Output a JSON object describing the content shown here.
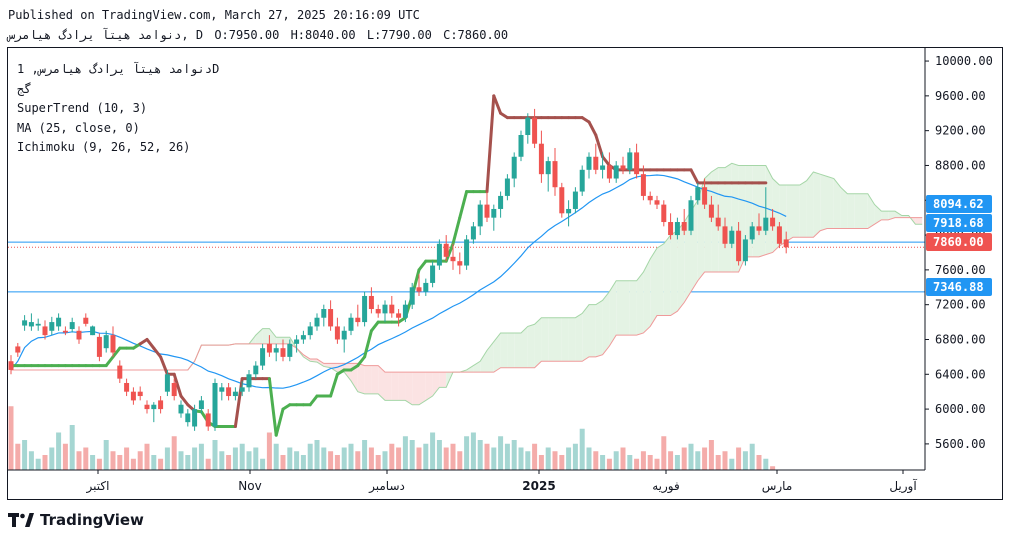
{
  "header": {
    "published": "Published on TradingView.com, March 27, 2025 20:16:09 UTC",
    "symbol": "دنوامد هیتآ یرادگ هیامرس, D",
    "ohlc": {
      "o": "O:7950.00",
      "h": "H:8040.00",
      "l": "L:7790.00",
      "c": "C:7860.00"
    }
  },
  "legend": {
    "symbol": "دنوامد هیتآ یرادگ هیامرس, 1D",
    "sub": "گج",
    "indicators": [
      "SuperTrend (10, 3)",
      "MA (25, close, 0)",
      "Ichimoku (9, 26, 52, 26)"
    ]
  },
  "brand": {
    "name": "TradingView"
  },
  "colors": {
    "up": "#26a69a",
    "down": "#ef5350",
    "upVol": "#a5d6d2",
    "downVol": "#f4acaa",
    "supertrendUp": "#4caf50",
    "supertrendDown": "#a5514d",
    "ma": "#2196f3",
    "cloudUp": "#e4f3e4",
    "cloudDown": "#fbe3e3",
    "hline": "#2196f3"
  },
  "chart_data": {
    "type": "candlestick",
    "y_axis": {
      "min": 5300,
      "max": 10150,
      "ticks": [
        "10000.00",
        "9600.00",
        "9200.00",
        "8800.00",
        "8400.00",
        "8000.00",
        "7600.00",
        "7200.00",
        "6800.00",
        "6400.00",
        "6000.00",
        "5600.00"
      ]
    },
    "x_axis": {
      "labels": [
        "اکتبر",
        "Nov",
        "دسامبر",
        "2025",
        "فوریه",
        "مارس",
        "آوریل"
      ]
    },
    "price_labels": [
      {
        "text": "8094.62",
        "color": "#2196f3"
      },
      {
        "text": "7918.68",
        "color": "#2196f3"
      },
      {
        "text": "7860.00",
        "color": "#ef5350"
      },
      {
        "text": "7346.88",
        "color": "#2196f3"
      }
    ],
    "horizontal_lines": [
      7918.68,
      7346.88
    ],
    "last_price": 7860.0,
    "candles": [
      [
        6550,
        6620,
        6400,
        6450
      ],
      [
        6720,
        6760,
        6600,
        6650
      ],
      [
        6960,
        7080,
        6900,
        7020
      ],
      [
        6950,
        7100,
        6900,
        7000
      ],
      [
        6960,
        7040,
        6900,
        6980
      ],
      [
        6950,
        7020,
        6800,
        6850
      ],
      [
        6900,
        7060,
        6850,
        7000
      ],
      [
        6950,
        7100,
        6900,
        7050
      ],
      [
        6900,
        6950,
        6850,
        6880
      ],
      [
        6920,
        7050,
        6880,
        7000
      ],
      [
        6900,
        6950,
        6750,
        6800
      ],
      [
        7050,
        7100,
        6950,
        6980
      ],
      [
        6850,
        6960,
        6850,
        6950
      ],
      [
        6830,
        6870,
        6550,
        6600
      ],
      [
        6700,
        6900,
        6650,
        6850
      ],
      [
        6850,
        6950,
        6600,
        6650
      ],
      [
        6500,
        6560,
        6300,
        6350
      ],
      [
        6300,
        6350,
        6150,
        6200
      ],
      [
        6200,
        6250,
        6050,
        6100
      ],
      [
        6200,
        6260,
        6100,
        6150
      ],
      [
        6050,
        6100,
        5950,
        6000
      ],
      [
        6000,
        6080,
        5850,
        6050
      ],
      [
        6100,
        6150,
        5950,
        6000
      ],
      [
        6200,
        6450,
        6150,
        6400
      ],
      [
        6300,
        6350,
        6100,
        6150
      ],
      [
        5950,
        6100,
        5900,
        6050
      ],
      [
        5850,
        6000,
        5800,
        5950
      ],
      [
        5800,
        6050,
        5750,
        6000
      ],
      [
        6000,
        6150,
        5950,
        6100
      ],
      [
        5950,
        6000,
        5750,
        5800
      ],
      [
        5800,
        6350,
        5750,
        6300
      ],
      [
        6200,
        6300,
        6100,
        6250
      ],
      [
        6250,
        6300,
        6100,
        6150
      ],
      [
        6150,
        6250,
        6100,
        6200
      ],
      [
        6200,
        6320,
        6150,
        6250
      ],
      [
        6250,
        6450,
        6200,
        6400
      ],
      [
        6400,
        6550,
        6350,
        6500
      ],
      [
        6500,
        6750,
        6450,
        6700
      ],
      [
        6750,
        6850,
        6600,
        6650
      ],
      [
        6650,
        6750,
        6550,
        6700
      ],
      [
        6700,
        6800,
        6550,
        6600
      ],
      [
        6600,
        6800,
        6550,
        6750
      ],
      [
        6750,
        6850,
        6650,
        6800
      ],
      [
        6800,
        6900,
        6750,
        6850
      ],
      [
        6850,
        7000,
        6800,
        6950
      ],
      [
        6950,
        7100,
        6900,
        7050
      ],
      [
        7050,
        7200,
        6950,
        7150
      ],
      [
        7150,
        7250,
        6900,
        6950
      ],
      [
        6950,
        7050,
        6750,
        6800
      ],
      [
        6800,
        6950,
        6650,
        6900
      ],
      [
        6900,
        7100,
        6850,
        7050
      ],
      [
        7050,
        7200,
        6950,
        7000
      ],
      [
        7000,
        7350,
        6950,
        7300
      ],
      [
        7300,
        7400,
        7100,
        7150
      ],
      [
        7150,
        7200,
        7050,
        7100
      ],
      [
        7100,
        7250,
        7000,
        7200
      ],
      [
        7200,
        7300,
        7050,
        7100
      ],
      [
        7100,
        7150,
        6950,
        7050
      ],
      [
        7050,
        7250,
        7000,
        7200
      ],
      [
        7200,
        7450,
        7150,
        7400
      ],
      [
        7400,
        7550,
        7300,
        7350
      ],
      [
        7350,
        7500,
        7300,
        7450
      ],
      [
        7450,
        7700,
        7400,
        7650
      ],
      [
        7650,
        7950,
        7600,
        7900
      ],
      [
        7900,
        8000,
        7700,
        7750
      ],
      [
        7750,
        7900,
        7600,
        7700
      ],
      [
        7700,
        7800,
        7550,
        7650
      ],
      [
        7650,
        8000,
        7600,
        7950
      ],
      [
        7950,
        8150,
        7900,
        8100
      ],
      [
        8100,
        8400,
        8000,
        8350
      ],
      [
        8350,
        8500,
        8150,
        8200
      ],
      [
        8200,
        8350,
        8050,
        8300
      ],
      [
        8300,
        8500,
        8200,
        8450
      ],
      [
        8450,
        8700,
        8400,
        8650
      ],
      [
        8650,
        8950,
        8550,
        8900
      ],
      [
        8900,
        9200,
        8850,
        9150
      ],
      [
        9150,
        9400,
        9050,
        9350
      ],
      [
        9350,
        9450,
        9000,
        9050
      ],
      [
        9050,
        9200,
        8600,
        8700
      ],
      [
        8700,
        8900,
        8500,
        8850
      ],
      [
        8850,
        9000,
        8450,
        8550
      ],
      [
        8550,
        8600,
        8200,
        8250
      ],
      [
        8250,
        8400,
        8100,
        8300
      ],
      [
        8300,
        8550,
        8250,
        8500
      ],
      [
        8500,
        8800,
        8450,
        8750
      ],
      [
        8750,
        8950,
        8650,
        8900
      ],
      [
        8900,
        9050,
        8700,
        8750
      ],
      [
        8750,
        8950,
        8650,
        8800
      ],
      [
        8800,
        8950,
        8600,
        8650
      ],
      [
        8650,
        8850,
        8600,
        8800
      ],
      [
        8800,
        8900,
        8700,
        8750
      ],
      [
        8750,
        9000,
        8700,
        8950
      ],
      [
        8950,
        9050,
        8650,
        8700
      ],
      [
        8700,
        8800,
        8400,
        8450
      ],
      [
        8450,
        8500,
        8350,
        8400
      ],
      [
        8400,
        8450,
        8300,
        8350
      ],
      [
        8350,
        8400,
        8100,
        8150
      ],
      [
        8150,
        8250,
        7950,
        8000
      ],
      [
        8000,
        8200,
        7950,
        8150
      ],
      [
        8150,
        8300,
        8000,
        8050
      ],
      [
        8050,
        8450,
        8000,
        8400
      ],
      [
        8400,
        8600,
        8350,
        8550
      ],
      [
        8550,
        8650,
        8300,
        8350
      ],
      [
        8350,
        8450,
        8150,
        8200
      ],
      [
        8200,
        8350,
        8050,
        8100
      ],
      [
        8100,
        8200,
        7850,
        7900
      ],
      [
        7900,
        8100,
        7850,
        8050
      ],
      [
        8050,
        8150,
        7650,
        7700
      ],
      [
        7700,
        8000,
        7650,
        7950
      ],
      [
        7950,
        8150,
        7900,
        8100
      ],
      [
        8100,
        8250,
        8000,
        8050
      ],
      [
        8050,
        8550,
        8000,
        8200
      ],
      [
        8200,
        8300,
        8050,
        8100
      ],
      [
        8100,
        8150,
        7850,
        7900
      ],
      [
        7950,
        8040,
        7790,
        7860
      ]
    ],
    "volume": [
      0.85,
      0.35,
      0.4,
      0.25,
      0.15,
      0.2,
      0.3,
      0.5,
      0.35,
      0.6,
      0.25,
      0.3,
      0.2,
      0.15,
      0.4,
      0.25,
      0.2,
      0.3,
      0.15,
      0.25,
      0.35,
      0.2,
      0.15,
      0.3,
      0.45,
      0.25,
      0.2,
      0.3,
      0.35,
      0.15,
      0.4,
      0.25,
      0.2,
      0.3,
      0.35,
      0.25,
      0.3,
      0.15,
      0.5,
      0.35,
      0.2,
      0.3,
      0.25,
      0.2,
      0.35,
      0.4,
      0.3,
      0.25,
      0.2,
      0.3,
      0.35,
      0.25,
      0.4,
      0.3,
      0.2,
      0.25,
      0.35,
      0.3,
      0.45,
      0.4,
      0.3,
      0.35,
      0.5,
      0.4,
      0.3,
      0.35,
      0.25,
      0.45,
      0.5,
      0.4,
      0.35,
      0.3,
      0.45,
      0.35,
      0.4,
      0.3,
      0.25,
      0.35,
      0.2,
      0.3,
      0.25,
      0.2,
      0.3,
      0.35,
      0.55,
      0.3,
      0.25,
      0.2,
      0.15,
      0.25,
      0.3,
      0.2,
      0.15,
      0.25,
      0.2,
      0.15,
      0.45,
      0.25,
      0.2,
      0.3,
      0.35,
      0.25,
      0.3,
      0.4,
      0.2,
      0.25,
      0.15,
      0.3,
      0.25,
      0.35,
      0.2,
      0.15,
      0.05
    ],
    "supertrend": [
      [
        6500,
        "up"
      ],
      [
        6500,
        "up"
      ],
      [
        6500,
        "up"
      ],
      [
        6500,
        "up"
      ],
      [
        6500,
        "up"
      ],
      [
        6500,
        "up"
      ],
      [
        6500,
        "up"
      ],
      [
        6500,
        "up"
      ],
      [
        6500,
        "up"
      ],
      [
        6500,
        "up"
      ],
      [
        6500,
        "up"
      ],
      [
        6500,
        "up"
      ],
      [
        6500,
        "up"
      ],
      [
        6500,
        "up"
      ],
      [
        6500,
        "up"
      ],
      [
        6600,
        "up"
      ],
      [
        6700,
        "up"
      ],
      [
        6700,
        "up"
      ],
      [
        6700,
        "up"
      ],
      [
        6750,
        "up"
      ],
      [
        6800,
        "down"
      ],
      [
        6700,
        "down"
      ],
      [
        6600,
        "down"
      ],
      [
        6400,
        "down"
      ],
      [
        6400,
        "down"
      ],
      [
        6150,
        "down"
      ],
      [
        6050,
        "down"
      ],
      [
        5980,
        "down"
      ],
      [
        5970,
        "up"
      ],
      [
        5850,
        "up"
      ],
      [
        5800,
        "up"
      ],
      [
        5800,
        "up"
      ],
      [
        5800,
        "up"
      ],
      [
        5800,
        "up"
      ],
      [
        6350,
        "down"
      ],
      [
        6350,
        "down"
      ],
      [
        6350,
        "down"
      ],
      [
        6350,
        "down"
      ],
      [
        6350,
        "down"
      ],
      [
        5700,
        "up"
      ],
      [
        6000,
        "up"
      ],
      [
        6050,
        "up"
      ],
      [
        6050,
        "up"
      ],
      [
        6050,
        "up"
      ],
      [
        6050,
        "up"
      ],
      [
        6150,
        "up"
      ],
      [
        6150,
        "up"
      ],
      [
        6150,
        "up"
      ],
      [
        6400,
        "up"
      ],
      [
        6450,
        "up"
      ],
      [
        6450,
        "up"
      ],
      [
        6500,
        "up"
      ],
      [
        6600,
        "up"
      ],
      [
        6900,
        "up"
      ],
      [
        7000,
        "up"
      ],
      [
        7000,
        "up"
      ],
      [
        7000,
        "up"
      ],
      [
        7000,
        "up"
      ],
      [
        7050,
        "up"
      ],
      [
        7300,
        "up"
      ],
      [
        7600,
        "up"
      ],
      [
        7700,
        "up"
      ],
      [
        7700,
        "up"
      ],
      [
        7700,
        "up"
      ],
      [
        7700,
        "up"
      ],
      [
        7900,
        "up"
      ],
      [
        8200,
        "up"
      ],
      [
        8500,
        "up"
      ],
      [
        8500,
        "up"
      ],
      [
        8500,
        "up"
      ],
      [
        8500,
        "up"
      ],
      [
        9600,
        "down"
      ],
      [
        9400,
        "down"
      ],
      [
        9350,
        "down"
      ],
      [
        9350,
        "down"
      ],
      [
        9350,
        "down"
      ],
      [
        9350,
        "down"
      ],
      [
        9350,
        "down"
      ],
      [
        9350,
        "down"
      ],
      [
        9350,
        "down"
      ],
      [
        9350,
        "down"
      ],
      [
        9350,
        "down"
      ],
      [
        9350,
        "down"
      ],
      [
        9350,
        "down"
      ],
      [
        9350,
        "down"
      ],
      [
        9300,
        "down"
      ],
      [
        9150,
        "down"
      ],
      [
        8900,
        "down"
      ],
      [
        8800,
        "down"
      ],
      [
        8750,
        "down"
      ],
      [
        8750,
        "down"
      ],
      [
        8750,
        "down"
      ],
      [
        8750,
        "down"
      ],
      [
        8750,
        "down"
      ],
      [
        8750,
        "down"
      ],
      [
        8750,
        "down"
      ],
      [
        8750,
        "down"
      ],
      [
        8750,
        "down"
      ],
      [
        8750,
        "down"
      ],
      [
        8750,
        "down"
      ],
      [
        8750,
        "down"
      ],
      [
        8600,
        "down"
      ],
      [
        8600,
        "down"
      ],
      [
        8600,
        "down"
      ],
      [
        8600,
        "down"
      ],
      [
        8600,
        "down"
      ],
      [
        8600,
        "down"
      ],
      [
        8600,
        "down"
      ],
      [
        8600,
        "down"
      ],
      [
        8600,
        "down"
      ],
      [
        8600,
        "down"
      ],
      [
        8600,
        "down"
      ]
    ]
  }
}
